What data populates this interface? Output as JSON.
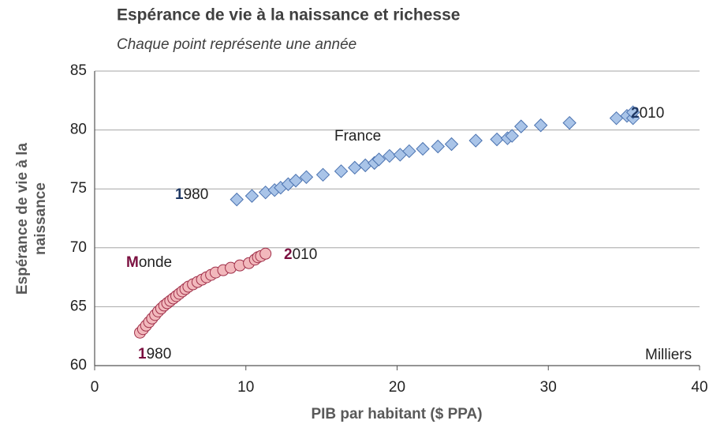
{
  "chart_data": {
    "type": "scatter",
    "title": "Espérance de vie à la naissance et richesse",
    "subtitle": "Chaque point représente une année",
    "xlabel": "PIB par habitant ($ PPA)",
    "ylabel": [
      "Espérance de vie à la",
      "naissance"
    ],
    "xlim": [
      0,
      40
    ],
    "xticks": [
      0,
      10,
      20,
      30,
      40
    ],
    "ylim": [
      60,
      85
    ],
    "yticks": [
      60,
      65,
      70,
      75,
      80,
      85
    ],
    "grid": true,
    "series": [
      {
        "name": "France",
        "marker": "diamond",
        "color": "#a9c4e8",
        "edge_color": "#4a72b0",
        "x": [
          9.4,
          10.4,
          11.3,
          11.9,
          12.3,
          12.8,
          13.3,
          14.0,
          15.1,
          16.3,
          17.2,
          17.9,
          18.5,
          18.8,
          19.5,
          20.2,
          20.8,
          21.7,
          22.7,
          23.6,
          25.2,
          26.6,
          27.3,
          27.6,
          28.2,
          29.5,
          31.4,
          34.5,
          35.2,
          35.6,
          35.6
        ],
        "values": [
          74.1,
          74.4,
          74.7,
          74.9,
          75.1,
          75.4,
          75.7,
          76.0,
          76.2,
          76.5,
          76.8,
          77.0,
          77.2,
          77.5,
          77.8,
          77.9,
          78.2,
          78.4,
          78.6,
          78.8,
          79.1,
          79.2,
          79.3,
          79.5,
          80.3,
          80.4,
          80.6,
          81.0,
          81.2,
          81.0,
          81.5
        ]
      },
      {
        "name": "Monde",
        "marker": "circle",
        "color": "#f2b8bc",
        "edge_color": "#a0304a",
        "x": [
          3.0,
          3.2,
          3.4,
          3.6,
          3.8,
          4.0,
          4.2,
          4.4,
          4.6,
          4.8,
          5.0,
          5.2,
          5.4,
          5.6,
          5.8,
          6.0,
          6.2,
          6.5,
          6.8,
          7.1,
          7.4,
          7.7,
          8.0,
          8.5,
          9.0,
          9.6,
          10.2,
          10.6,
          10.8,
          11.0,
          11.3
        ],
        "values": [
          62.8,
          63.1,
          63.4,
          63.7,
          64.0,
          64.3,
          64.6,
          64.85,
          65.1,
          65.3,
          65.5,
          65.7,
          65.9,
          66.1,
          66.3,
          66.5,
          66.7,
          66.9,
          67.1,
          67.3,
          67.5,
          67.7,
          67.9,
          68.1,
          68.3,
          68.5,
          68.7,
          69.0,
          69.2,
          69.3,
          69.5
        ]
      }
    ],
    "annotations": [
      {
        "text": "France"
      },
      {
        "text": "1980",
        "accent_color": "#1f3864"
      },
      {
        "text": "2010",
        "accent_color": "#1f3864"
      },
      {
        "text": "Monde",
        "accent_color": "#7b1040"
      },
      {
        "text": "2010",
        "accent_color": "#7b1040"
      },
      {
        "text": "1980",
        "accent_color": "#7b1040"
      },
      {
        "text": "Milliers"
      }
    ]
  }
}
